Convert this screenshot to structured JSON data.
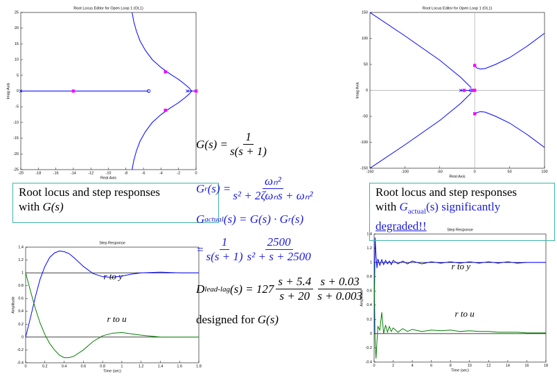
{
  "chart_data": [
    {
      "type": "root-locus",
      "title": "Root Locus Editor for Open Loop 1 (OL1)",
      "x_label": "Real Axis",
      "y_label": "Imag Axis",
      "xlim": [
        -20,
        0
      ],
      "xticks": [
        -20,
        -18,
        -16,
        -14,
        -12,
        -10,
        -8,
        -6,
        -4,
        -2,
        0
      ],
      "ylim": [
        -25,
        25
      ],
      "yticks": [
        -25,
        -20,
        -15,
        -10,
        -5,
        0,
        5,
        10,
        15,
        20,
        25
      ],
      "series": [
        {
          "color": "#0000ff",
          "x": [
            -20,
            -5.4
          ],
          "y": [
            0,
            0
          ]
        },
        {
          "color": "#0000ff",
          "x": [
            -1,
            0
          ],
          "y": [
            0,
            0
          ]
        },
        {
          "color": "#0000ff",
          "x": [
            -7.3,
            -7.1,
            -6.8,
            -6.4,
            -5.8,
            -5,
            -4,
            -3,
            -2,
            -1.3,
            -0.8,
            -0.5
          ],
          "y": [
            25,
            22,
            19,
            16,
            13,
            10,
            7.5,
            5.5,
            3.7,
            2.2,
            1,
            0
          ]
        },
        {
          "color": "#0000ff",
          "x": [
            -7.3,
            -7.1,
            -6.8,
            -6.4,
            -5.8,
            -5,
            -4,
            -3,
            -2,
            -1.3,
            -0.8,
            -0.5
          ],
          "y": [
            -25,
            -22,
            -19,
            -16,
            -13,
            -10,
            -7.5,
            -5.5,
            -3.7,
            -2.2,
            -1,
            0
          ]
        }
      ],
      "markers": [
        {
          "marker": "x",
          "color": "#0000ff",
          "x": [
            -20,
            -1,
            0
          ],
          "y": [
            0,
            0,
            0
          ]
        },
        {
          "marker": "o",
          "color": "#0000ff",
          "x": [
            -5.4
          ],
          "y": [
            0
          ]
        },
        {
          "marker": "square",
          "color": "#ff00ff",
          "x": [
            -14,
            -3.5,
            -3.5,
            0
          ],
          "y": [
            0,
            6.1,
            -6.1,
            0
          ]
        }
      ]
    },
    {
      "type": "root-locus",
      "title": "Root Locus Editor for Open Loop 1 (OL1)",
      "x_label": "Real Axis",
      "y_label": "Imag Axis",
      "xlim": [
        -150,
        100
      ],
      "xticks": [
        -150,
        -100,
        -50,
        0,
        50,
        100
      ],
      "ylim": [
        -150,
        150
      ],
      "yticks": [
        -150,
        -100,
        -50,
        0,
        50,
        100,
        150
      ],
      "hlines": [
        0
      ],
      "vlines": [
        0
      ],
      "ref_color": "#aaaaaa",
      "series": [
        {
          "color": "#0000ff",
          "x": [
            -150,
            -100,
            -50,
            -20,
            -5
          ],
          "y": [
            150,
            105,
            58,
            25,
            5
          ]
        },
        {
          "color": "#0000ff",
          "x": [
            -150,
            -100,
            -50,
            -20,
            -5
          ],
          "y": [
            -150,
            -105,
            -58,
            -25,
            -5
          ]
        },
        {
          "color": "#0000ff",
          "x": [
            0,
            3,
            8,
            15,
            30,
            50,
            75,
            100
          ],
          "y": [
            48,
            43,
            41,
            42,
            50,
            63,
            85,
            110
          ]
        },
        {
          "color": "#0000ff",
          "x": [
            0,
            3,
            8,
            15,
            30,
            50,
            75,
            100
          ],
          "y": [
            -48,
            -43,
            -41,
            -42,
            -50,
            -63,
            -85,
            -110
          ]
        },
        {
          "color": "#0000ff",
          "x": [
            -20,
            0
          ],
          "y": [
            0,
            0
          ]
        }
      ],
      "markers": [
        {
          "marker": "x",
          "color": "#0000ff",
          "x": [
            -20,
            -1,
            0
          ],
          "y": [
            0,
            0,
            0
          ]
        },
        {
          "marker": "o",
          "color": "#0000ff",
          "x": [
            -5.4
          ],
          "y": [
            0
          ]
        },
        {
          "marker": "square",
          "color": "#ff00ff",
          "x": [
            0,
            0,
            -15,
            -3,
            0
          ],
          "y": [
            48,
            -45,
            0,
            0,
            0
          ]
        }
      ]
    },
    {
      "type": "line",
      "title": "Step Response",
      "x_label": "Time (sec)",
      "y_label": "Amplitude",
      "xlim": [
        0,
        1.8
      ],
      "xticks": [
        0,
        0.2,
        0.4,
        0.6,
        0.8,
        1,
        1.2,
        1.4,
        1.6,
        1.8
      ],
      "ylim": [
        -0.4,
        1.4
      ],
      "yticks": [
        -0.4,
        -0.2,
        0,
        0.2,
        0.4,
        0.6,
        0.8,
        1,
        1.2,
        1.4
      ],
      "hlines": [
        0,
        1
      ],
      "ref_color": "#000000",
      "annotations": [
        "r to y",
        "r to u"
      ],
      "series": [
        {
          "color": "#0000ff",
          "x": [
            0,
            0.05,
            0.1,
            0.15,
            0.2,
            0.25,
            0.3,
            0.35,
            0.4,
            0.45,
            0.5,
            0.6,
            0.7,
            0.8,
            0.9,
            1.0,
            1.1,
            1.2,
            1.4,
            1.6,
            1.8
          ],
          "y": [
            0,
            0.3,
            0.62,
            0.9,
            1.1,
            1.24,
            1.31,
            1.34,
            1.33,
            1.3,
            1.24,
            1.1,
            0.99,
            0.94,
            0.93,
            0.95,
            0.98,
            1.0,
            1.01,
            1.0,
            1.0
          ]
        },
        {
          "color": "#008000",
          "x": [
            0,
            0.05,
            0.1,
            0.15,
            0.2,
            0.25,
            0.3,
            0.35,
            0.4,
            0.45,
            0.5,
            0.6,
            0.7,
            0.8,
            0.9,
            1.0,
            1.1,
            1.2,
            1.4,
            1.6,
            1.8
          ],
          "y": [
            1,
            0.72,
            0.45,
            0.22,
            0.04,
            -0.1,
            -0.2,
            -0.28,
            -0.32,
            -0.32,
            -0.3,
            -0.2,
            -0.07,
            0.02,
            0.06,
            0.07,
            0.05,
            0.03,
            0.0,
            0.0,
            0.0
          ]
        }
      ]
    },
    {
      "type": "line",
      "title": "Step Response",
      "x_label": "Time (sec)",
      "y_label": "Amplitude",
      "xlim": [
        0,
        18
      ],
      "xticks": [
        0,
        2,
        4,
        6,
        8,
        10,
        12,
        14,
        16,
        18
      ],
      "ylim": [
        -0.4,
        1.4
      ],
      "yticks": [
        -0.4,
        -0.2,
        0,
        0.2,
        0.4,
        0.6,
        0.8,
        1,
        1.2,
        1.4
      ],
      "hlines": [
        0,
        1
      ],
      "ref_color": "#000000",
      "annotations": [
        "r to y",
        "r to u"
      ],
      "series": [
        {
          "color": "#0000ff",
          "x": [
            0,
            0.1,
            0.2,
            0.3,
            0.4,
            0.6,
            0.8,
            1,
            1.2,
            1.4,
            1.6,
            1.8,
            2,
            2.5,
            3,
            3.5,
            4,
            5,
            6,
            7,
            8,
            9,
            10,
            11,
            12,
            13,
            14,
            15,
            16,
            17,
            18
          ],
          "y": [
            0,
            1.35,
            1.1,
            0.92,
            1.05,
            0.96,
            1.04,
            0.97,
            1.03,
            0.98,
            1.02,
            0.97,
            1.03,
            0.98,
            1.02,
            0.98,
            1.02,
            0.98,
            1.01,
            0.99,
            1.01,
            0.99,
            1.01,
            0.99,
            1.01,
            0.99,
            1.01,
            0.99,
            1.0,
            1.0,
            1.0
          ]
        },
        {
          "color": "#008000",
          "x": [
            0,
            0.1,
            0.2,
            0.3,
            0.4,
            0.6,
            0.8,
            1,
            1.2,
            1.4,
            1.6,
            1.8,
            2,
            2.5,
            3,
            3.5,
            4,
            5,
            6,
            7,
            8,
            9,
            10,
            11,
            12,
            13,
            14,
            15,
            16,
            17,
            18
          ],
          "y": [
            1,
            -0.1,
            -0.35,
            -0.1,
            0.1,
            0.05,
            0.3,
            0.0,
            0.12,
            0.02,
            0.1,
            0.03,
            0.08,
            0.02,
            0.07,
            0.03,
            0.06,
            0.03,
            0.05,
            0.04,
            0.05,
            0.03,
            0.04,
            0.03,
            0.03,
            0.02,
            0.02,
            0.02,
            0.01,
            0.01,
            0.01
          ]
        }
      ]
    }
  ],
  "slide": {
    "left_box": {
      "line1": "Root locus and step responses",
      "line2": "with ",
      "math": "G(s)"
    },
    "right_box": {
      "line1": "Root locus and step responses",
      "line2": "with ",
      "g": "G",
      "sub": "actual",
      "rest": "(s) significantly",
      "line3": "degraded!!"
    },
    "eq1": {
      "lhs": "G(s) =",
      "num": "1",
      "den": "s(s + 1)"
    },
    "eq2": {
      "g": "G",
      "sub": "r",
      "rest": "(s) =",
      "num": "ωₙ²",
      "den": "s² + 2ζωₙs + ωₙ²"
    },
    "eq3": {
      "g": "G",
      "sub": "actual",
      "rhs": "(s) = G(s) · G",
      "rhs_sub": "r",
      "end": "(s)"
    },
    "eq4": {
      "eq": "=",
      "num1": "1",
      "den1": "s(s + 1)",
      "num2": "2500",
      "den2": "s² + s + 2500"
    },
    "eq5": {
      "d": "D",
      "sub": "lead-lag",
      "rest": "(s) = 127",
      "num1": "s + 5.4",
      "den1": "s + 20",
      "num2": "s + 0.03",
      "den2": "s + 0.003"
    },
    "eq6": {
      "text": "designed for ",
      "math": "G(s)"
    }
  }
}
